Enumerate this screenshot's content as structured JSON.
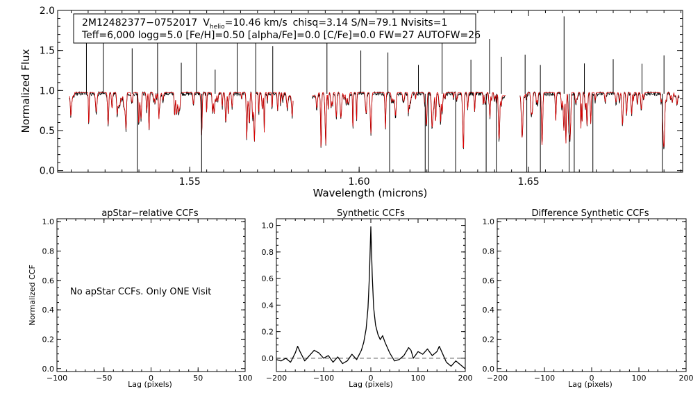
{
  "colors": {
    "observed": "#000000",
    "model": "#e00000",
    "background": "#ffffff",
    "zero_line": "#555555"
  },
  "chart_data": [
    {
      "id": "spectrum",
      "type": "line",
      "title": "",
      "xlabel": "Wavelength (microns)",
      "ylabel": "Normalized Flux",
      "xlim": [
        1.511,
        1.6955
      ],
      "ylim": [
        -0.02,
        2.0
      ],
      "xticks": [
        1.55,
        1.6,
        1.65
      ],
      "xtick_labels": [
        "1.55",
        "1.60",
        "1.65"
      ],
      "yticks": [
        0.0,
        0.5,
        1.0,
        1.5,
        2.0
      ],
      "ytick_labels": [
        "0.0",
        "0.5",
        "1.0",
        "1.5",
        "2.0"
      ],
      "chips": [
        [
          1.5145,
          1.5805
        ],
        [
          1.5862,
          1.6432
        ],
        [
          1.6475,
          1.6945
        ]
      ],
      "series": [
        {
          "name": "observed spectrum",
          "color": "#000000",
          "continuum": 0.96
        },
        {
          "name": "best-fit synthetic spectrum",
          "color": "#e00000",
          "continuum": 0.975
        }
      ],
      "spikes_up": [
        1.5195,
        1.5245,
        1.533,
        1.5405,
        1.5475,
        1.552,
        1.5575,
        1.564,
        1.5695,
        1.5745,
        1.5905,
        1.6005,
        1.6085,
        1.6175,
        1.6245,
        1.633,
        1.6385,
        1.642,
        1.649,
        1.6535,
        1.6605,
        1.6665,
        1.675,
        1.6835,
        1.69
      ],
      "spikes_down": [
        1.5345,
        1.5535,
        1.609,
        1.6195,
        1.6205,
        1.6285,
        1.6375,
        1.6405,
        1.6495,
        1.6535,
        1.662,
        1.6635,
        1.669,
        1.6895
      ],
      "legend": {
        "star_id": "2M12482377−0752017",
        "v_label": "V",
        "v_subscript": "helio",
        "v_value": "=10.46 km/s",
        "stats": "chisq=3.14  S/N=79.1  Nvisits=1",
        "params": "Teff=6,000 logg=5.0 [Fe/H]=0.50 [alpha/Fe]=0.0 [C/Fe]=0.0 FW=27 AUTOFW=26"
      }
    },
    {
      "id": "apstar-ccf",
      "type": "line",
      "title": "apStar−relative CCFs",
      "xlabel": "Lag (pixels)",
      "ylabel": "Normalized CCF",
      "xlim": [
        -100,
        100
      ],
      "ylim": [
        -0.02,
        1.02
      ],
      "xticks": [
        -100,
        -50,
        0,
        50,
        100
      ],
      "xtick_labels": [
        "−100",
        "−50",
        "0",
        "50",
        "100"
      ],
      "yticks": [
        0.0,
        0.2,
        0.4,
        0.6,
        0.8,
        1.0
      ],
      "ytick_labels": [
        "0.0",
        "0.2",
        "0.4",
        "0.6",
        "0.8",
        "1.0"
      ],
      "annotation": "No apStar CCFs.  Only ONE Visit",
      "series": []
    },
    {
      "id": "synthetic-ccf",
      "type": "line",
      "title": "Synthetic CCFs",
      "xlabel": "Lag (pixels)",
      "ylabel": "",
      "xlim": [
        -200,
        200
      ],
      "ylim": [
        -0.1,
        1.05
      ],
      "xticks": [
        -200,
        -100,
        0,
        100,
        200
      ],
      "xtick_labels": [
        "−200",
        "−100",
        "0",
        "100",
        "200"
      ],
      "yticks": [
        0.0,
        0.2,
        0.4,
        0.6,
        0.8,
        1.0
      ],
      "ytick_labels": [
        "0.0",
        "0.2",
        "0.4",
        "0.6",
        "0.8",
        "1.0"
      ],
      "zero_line": 0.0,
      "series": [
        {
          "name": "synthetic CCF",
          "x": [
            -200,
            -190,
            -180,
            -170,
            -160,
            -155,
            -150,
            -140,
            -130,
            -120,
            -110,
            -100,
            -90,
            -80,
            -70,
            -60,
            -50,
            -40,
            -30,
            -20,
            -15,
            -10,
            -6,
            -3,
            0,
            3,
            6,
            10,
            15,
            20,
            25,
            30,
            40,
            50,
            60,
            70,
            80,
            85,
            90,
            100,
            110,
            120,
            130,
            140,
            145,
            150,
            160,
            170,
            180,
            190,
            200
          ],
          "y": [
            -0.01,
            -0.02,
            0.0,
            -0.03,
            0.04,
            0.09,
            0.05,
            -0.02,
            0.02,
            0.06,
            0.04,
            0.0,
            0.02,
            -0.03,
            0.01,
            -0.04,
            -0.02,
            0.03,
            -0.01,
            0.06,
            0.12,
            0.22,
            0.38,
            0.62,
            0.99,
            0.62,
            0.38,
            0.25,
            0.18,
            0.14,
            0.17,
            0.12,
            0.04,
            -0.02,
            -0.01,
            0.02,
            0.08,
            0.06,
            0.0,
            0.05,
            0.03,
            0.07,
            0.02,
            0.05,
            0.09,
            0.05,
            -0.03,
            -0.06,
            -0.02,
            -0.05,
            -0.08
          ]
        }
      ]
    },
    {
      "id": "difference-ccf",
      "type": "line",
      "title": "Difference Synthetic CCFs",
      "xlabel": "Lag (pixels)",
      "ylabel": "",
      "xlim": [
        -200,
        200
      ],
      "ylim": [
        -0.02,
        1.02
      ],
      "xticks": [
        -200,
        -100,
        0,
        100,
        200
      ],
      "xtick_labels": [
        "−200",
        "−100",
        "0",
        "100",
        "200"
      ],
      "yticks": [
        0.0,
        0.2,
        0.4,
        0.6,
        0.8,
        1.0
      ],
      "ytick_labels": [
        "0.0",
        "0.2",
        "0.4",
        "0.6",
        "0.8",
        "1.0"
      ],
      "series": []
    }
  ]
}
